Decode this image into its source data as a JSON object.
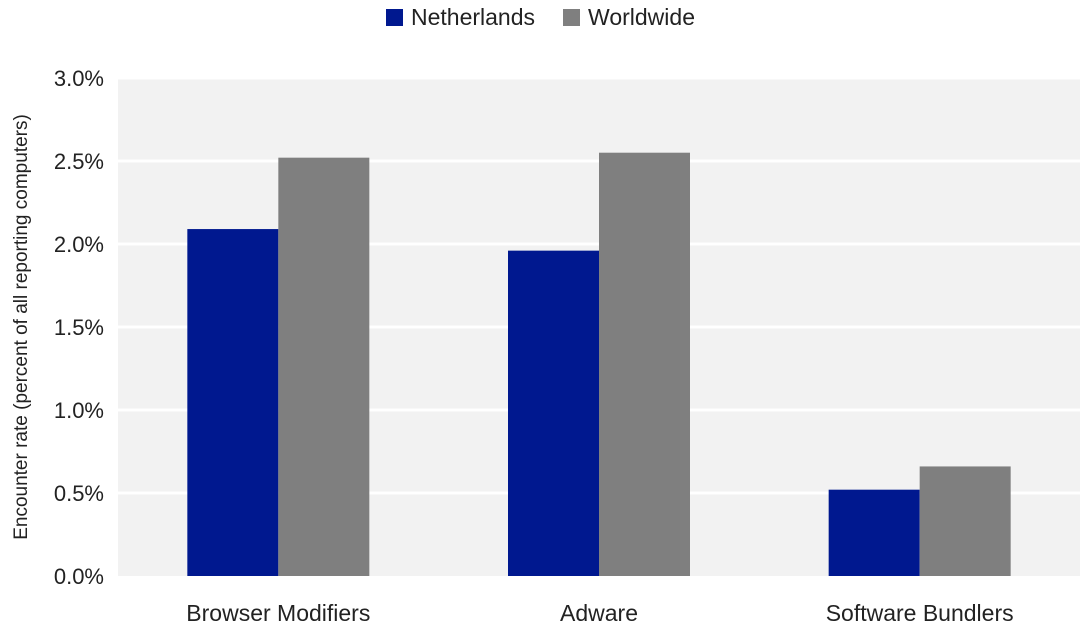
{
  "chart_data": {
    "type": "bar",
    "categories": [
      "Browser Modifiers",
      "Adware",
      "Software Bundlers"
    ],
    "series": [
      {
        "name": "Netherlands",
        "color": "#00188F",
        "values": [
          2.09,
          1.96,
          0.52
        ]
      },
      {
        "name": "Worldwide",
        "color": "#7F7F7F",
        "values": [
          2.52,
          2.55,
          0.66
        ]
      }
    ],
    "ylabel": "Encounter rate (percent of all reporting computers)",
    "xlabel": "",
    "ylim": [
      0,
      3.0
    ],
    "yticks": [
      "0.0%",
      "0.5%",
      "1.0%",
      "1.5%",
      "2.0%",
      "2.5%",
      "3.0%"
    ],
    "ytick_values": [
      0,
      0.5,
      1.0,
      1.5,
      2.0,
      2.5,
      3.0
    ],
    "grid": true,
    "legend_position": "top-center",
    "plot_background": "#F2F2F2"
  }
}
